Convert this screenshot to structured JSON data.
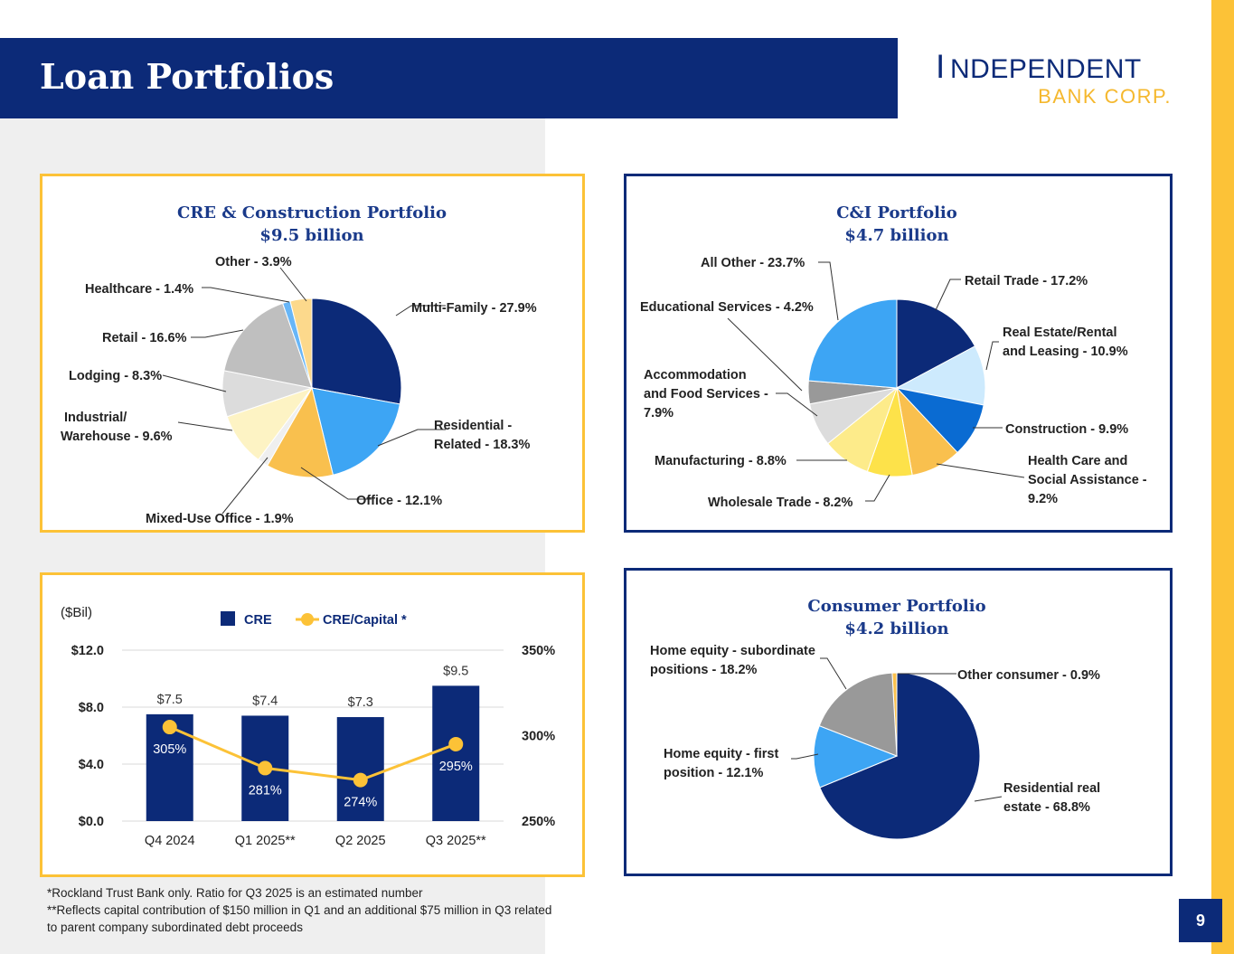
{
  "header": {
    "title": "Loan Portfolios"
  },
  "logo": {
    "line1": "Independent",
    "line2": "BANK CORP."
  },
  "colors": {
    "navy": "#0c2a78",
    "gold": "#fcc237"
  },
  "page_number": "9",
  "footnotes": [
    "*Rockland Trust Bank only.  Ratio for Q3 2025 is an estimated number",
    "**Reflects capital contribution of $150 million in Q1 and an additional $75 million in Q3 related to parent company subordinated debt proceeds"
  ],
  "chart_data": [
    {
      "type": "pie",
      "title": "CRE & Construction Portfolio",
      "subtitle": "$9.5 billion",
      "slices": [
        {
          "label": "Multi-Family - 27.9%",
          "value": 27.9,
          "color": "#0c2a78"
        },
        {
          "label": "Residential - Related - 18.3%",
          "value": 18.3,
          "color": "#3da5f4"
        },
        {
          "label": "Office - 12.1%",
          "value": 12.1,
          "color": "#f9c04e"
        },
        {
          "label": "Mixed-Use Office - 1.9%",
          "value": 1.9,
          "color": "#efefef"
        },
        {
          "label": "Industrial/ Warehouse - 9.6%",
          "value": 9.6,
          "color": "#fdf3c4"
        },
        {
          "label": "Lodging - 8.3%",
          "value": 8.3,
          "color": "#dcdcdc"
        },
        {
          "label": "Retail - 16.6%",
          "value": 16.6,
          "color": "#bfbfbf"
        },
        {
          "label": "Healthcare - 1.4%",
          "value": 1.4,
          "color": "#68b6f7"
        },
        {
          "label": "Other - 3.9%",
          "value": 3.9,
          "color": "#fcd98c"
        }
      ]
    },
    {
      "type": "pie",
      "title": "C&I Portfolio",
      "subtitle": "$4.7 billion",
      "slices": [
        {
          "label": "Retail Trade - 17.2%",
          "value": 17.2,
          "color": "#0c2a78"
        },
        {
          "label": "Real Estate/Rental and Leasing - 10.9%",
          "value": 10.9,
          "color": "#cdeafd"
        },
        {
          "label": "Construction - 9.9%",
          "value": 9.9,
          "color": "#0a6bd2"
        },
        {
          "label": "Health Care and Social Assistance - 9.2%",
          "value": 9.2,
          "color": "#f9c04e"
        },
        {
          "label": "Wholesale Trade - 8.2%",
          "value": 8.2,
          "color": "#fde24a"
        },
        {
          "label": "Manufacturing - 8.8%",
          "value": 8.8,
          "color": "#fdeb8a"
        },
        {
          "label": "Accommodation and Food Services - 7.9%",
          "value": 7.9,
          "color": "#dcdcdc"
        },
        {
          "label": "Educational Services - 4.2%",
          "value": 4.2,
          "color": "#999999"
        },
        {
          "label": "All Other  - 23.7%",
          "value": 23.7,
          "color": "#3da5f4"
        }
      ]
    },
    {
      "type": "bar",
      "ylabel": "($Bil)",
      "categories": [
        "Q4 2024",
        "Q1 2025**",
        "Q2 2025",
        "Q3 2025**"
      ],
      "series": [
        {
          "name": "CRE",
          "values": [
            7.5,
            7.4,
            7.3,
            9.5
          ],
          "labels": [
            "$7.5",
            "$7.4",
            "$7.3",
            "$9.5"
          ],
          "color": "#0c2a78"
        },
        {
          "name": "CRE/Capital *",
          "values": [
            305,
            281,
            274,
            295
          ],
          "labels": [
            "305%",
            "281%",
            "274%",
            "295%"
          ],
          "color": "#fcc237",
          "axis": "secondary"
        }
      ],
      "ylim": [
        0,
        12
      ],
      "yticks": [
        "$0.0",
        "$4.0",
        "$8.0",
        "$12.0"
      ],
      "y2lim": [
        250,
        350
      ],
      "y2ticks": [
        "250%",
        "300%",
        "350%"
      ],
      "grid": true,
      "legend": "top"
    },
    {
      "type": "pie",
      "title": "Consumer Portfolio",
      "subtitle": "$4.2 billion",
      "slices": [
        {
          "label": "Other consumer - 0.9%",
          "value": 0.9,
          "color": "#f9c04e"
        },
        {
          "label": "Residential real estate - 68.8%",
          "value": 68.8,
          "color": "#0c2a78"
        },
        {
          "label": "Home equity - first position - 12.1%",
          "value": 12.1,
          "color": "#3da5f4"
        },
        {
          "label": "Home equity - subordinate positions - 18.2%",
          "value": 18.2,
          "color": "#999999"
        }
      ]
    }
  ]
}
